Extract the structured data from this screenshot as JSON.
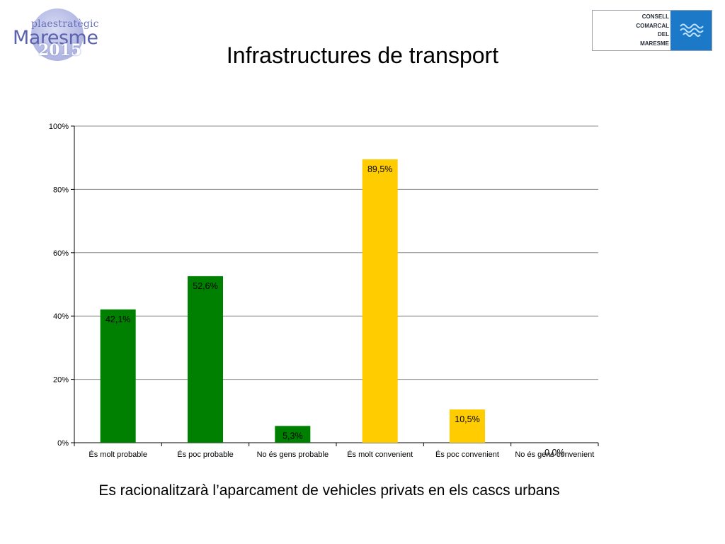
{
  "header": {
    "logo_left": {
      "line1": "plaestratègic",
      "line2": "Maresme",
      "line3": "2015"
    },
    "logo_right": {
      "lines": [
        "CONSELL",
        "COMARCAL",
        "DEL",
        "MARESME"
      ]
    },
    "title": "Infrastructures de transport"
  },
  "chart_data": {
    "type": "bar",
    "title": "Infrastructures de transport",
    "categories": [
      "És molt probable",
      "És poc probable",
      "No és gens probable",
      "És molt convenient",
      "És poc convenient",
      "No és gens convenient"
    ],
    "values": [
      42.1,
      52.6,
      5.3,
      89.5,
      10.5,
      0.0
    ],
    "data_labels": [
      "42,1%",
      "52,6%",
      "5,3%",
      "89,5%",
      "10,5%",
      "0,0%"
    ],
    "bar_colors": [
      "#008000",
      "#008000",
      "#008000",
      "#ffcc00",
      "#ffcc00",
      "#ffcc00"
    ],
    "yticks": [
      0,
      20,
      40,
      60,
      80,
      100
    ],
    "ytick_labels": [
      "0%",
      "20%",
      "40%",
      "60%",
      "80%",
      "100%"
    ],
    "ylim": [
      0,
      100
    ],
    "grid": true,
    "legend": "none",
    "xlabel": "",
    "ylabel": ""
  },
  "caption": "Es racionalitzarà l’aparcament de vehicles privats en els cascs urbans"
}
